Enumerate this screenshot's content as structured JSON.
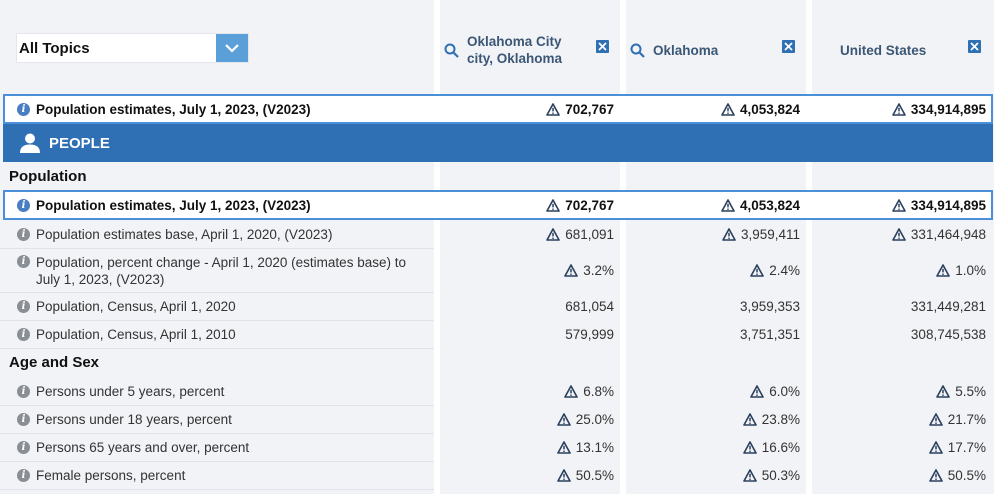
{
  "topics": {
    "label": "All Topics"
  },
  "locations": [
    {
      "name_line1": "Oklahoma City",
      "name_line2": "city, Oklahoma"
    },
    {
      "name_line1": "Oklahoma",
      "name_line2": ""
    },
    {
      "name_line1": "United States",
      "name_line2": ""
    }
  ],
  "pinned_row": {
    "label": "Population estimates, July 1, 2023, (V2023)",
    "values": [
      "702,767",
      "4,053,824",
      "334,914,895"
    ]
  },
  "people_section": {
    "label": "PEOPLE"
  },
  "population": {
    "heading": "Population",
    "rows": [
      {
        "label": "Population estimates, July 1, 2023, (V2023)",
        "values": [
          "702,767",
          "4,053,824",
          "334,914,895"
        ]
      },
      {
        "label": "Population estimates base, April 1, 2020, (V2023)",
        "values": [
          "681,091",
          "3,959,411",
          "331,464,948"
        ]
      },
      {
        "label": "Population, percent change - April 1, 2020 (estimates base) to",
        "label2": "July 1, 2023, (V2023)",
        "values": [
          "3.2%",
          "2.4%",
          "1.0%"
        ]
      },
      {
        "label": "Population, Census, April 1, 2020",
        "values": [
          "681,054",
          "3,959,353",
          "331,449,281"
        ]
      },
      {
        "label": "Population, Census, April 1, 2010",
        "values": [
          "579,999",
          "3,751,351",
          "308,745,538"
        ]
      }
    ]
  },
  "age_sex": {
    "heading": "Age and Sex",
    "rows": [
      {
        "label": "Persons under 5 years, percent",
        "values": [
          "6.8%",
          "6.0%",
          "5.5%"
        ]
      },
      {
        "label": "Persons under 18 years, percent",
        "values": [
          "25.0%",
          "23.8%",
          "21.7%"
        ]
      },
      {
        "label": "Persons 65 years and over, percent",
        "values": [
          "13.1%",
          "16.6%",
          "17.7%"
        ]
      },
      {
        "label": "Female persons, percent",
        "values": [
          "50.5%",
          "50.3%",
          "50.5%"
        ]
      }
    ]
  }
}
